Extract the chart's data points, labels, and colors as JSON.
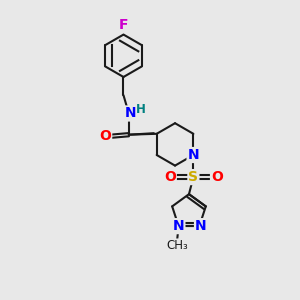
{
  "background_color": "#e8e8e8",
  "bond_color": "#1a1a1a",
  "atom_colors": {
    "F": "#cc00cc",
    "O": "#ff0000",
    "N": "#0000ff",
    "S": "#ccaa00",
    "H": "#008080",
    "C": "#1a1a1a"
  },
  "figsize": [
    3.0,
    3.0
  ],
  "dpi": 100
}
